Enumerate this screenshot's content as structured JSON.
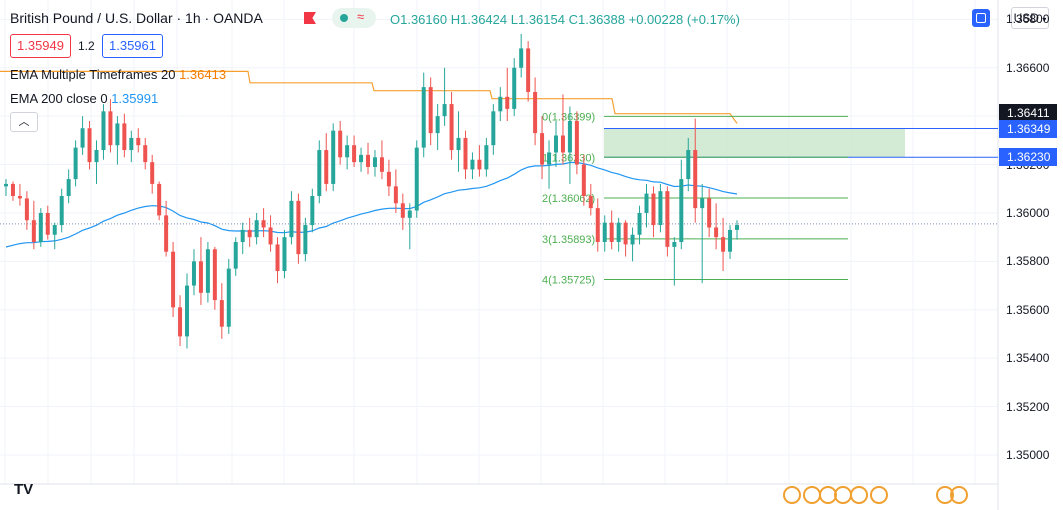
{
  "header": {
    "title": "British Pound / U.S. Dollar · 1h · OANDA",
    "open": "O1.36160",
    "high": "H1.36424",
    "low": "L1.36154",
    "close": "C1.36388",
    "change": "+0.00228 (+0.17%)",
    "sell_price": "1.35949",
    "spread": "1.2",
    "buy_price": "1.35961"
  },
  "indicators": {
    "ema20_label": "EMA Multiple Timeframes 20",
    "ema20_value": "1.36413",
    "ema200_label": "EMA 200 close 0",
    "ema200_value": "1.35991"
  },
  "toolbar": {
    "currency": "USD",
    "logo": "TV"
  },
  "axis": {
    "labels": [
      "1.36800",
      "1.36600",
      "1.36400",
      "1.36200",
      "1.36000",
      "1.35800",
      "1.35600",
      "1.35400",
      "1.35200",
      "1.35000"
    ],
    "tags": [
      {
        "text": "1.36411",
        "color": "#131722"
      },
      {
        "text": "1.36349",
        "color": "#2962ff"
      },
      {
        "text": "1.36230",
        "color": "#2962ff"
      }
    ]
  },
  "fib": {
    "levels": [
      {
        "label": "0(1.36399)",
        "price": 1.36399
      },
      {
        "label": "1(1.36230)",
        "price": 1.3623
      },
      {
        "label": "2(1.36062)",
        "price": 1.36062
      },
      {
        "label": "3(1.35893)",
        "price": 1.35893
      },
      {
        "label": "4(1.35725)",
        "price": 1.35725
      }
    ]
  },
  "colors": {
    "up": "#26a69a",
    "down": "#ef5350",
    "ema20": "#f5a030",
    "ema200": "#2196f3",
    "fib": "#4caf50",
    "zone": "#c8e6c9"
  },
  "chart_data": {
    "type": "candlestick",
    "ylim": [
      1.3488,
      1.3688
    ],
    "zone": [
      1.3623,
      1.36349
    ],
    "hlines": [
      1.36349,
      1.3623
    ],
    "current_price": 1.35955,
    "candles": [
      [
        1.3611,
        1.3614,
        1.3607,
        1.3612
      ],
      [
        1.3612,
        1.3613,
        1.3605,
        1.3607
      ],
      [
        1.3607,
        1.3612,
        1.3603,
        1.3606
      ],
      [
        1.3606,
        1.3609,
        1.3593,
        1.3597
      ],
      [
        1.3597,
        1.3605,
        1.3585,
        1.3588
      ],
      [
        1.3588,
        1.3602,
        1.3586,
        1.36
      ],
      [
        1.36,
        1.3603,
        1.3589,
        1.3591
      ],
      [
        1.3591,
        1.3596,
        1.3585,
        1.3595
      ],
      [
        1.3595,
        1.361,
        1.3592,
        1.3607
      ],
      [
        1.3607,
        1.3618,
        1.3604,
        1.3614
      ],
      [
        1.3614,
        1.363,
        1.3611,
        1.3627
      ],
      [
        1.3627,
        1.364,
        1.3624,
        1.3635
      ],
      [
        1.3635,
        1.3638,
        1.3618,
        1.3621
      ],
      [
        1.3621,
        1.363,
        1.3612,
        1.3626
      ],
      [
        1.3626,
        1.3645,
        1.3622,
        1.3642
      ],
      [
        1.3642,
        1.3647,
        1.3625,
        1.3628
      ],
      [
        1.3628,
        1.364,
        1.362,
        1.3637
      ],
      [
        1.3637,
        1.3641,
        1.3623,
        1.3626
      ],
      [
        1.3626,
        1.3634,
        1.3621,
        1.3631
      ],
      [
        1.3631,
        1.3635,
        1.3625,
        1.3628
      ],
      [
        1.3628,
        1.3631,
        1.3618,
        1.3621
      ],
      [
        1.3621,
        1.3624,
        1.3608,
        1.3612
      ],
      [
        1.3612,
        1.3613,
        1.3597,
        1.3599
      ],
      [
        1.3599,
        1.3605,
        1.3582,
        1.3584
      ],
      [
        1.3584,
        1.3588,
        1.3557,
        1.3561
      ],
      [
        1.3561,
        1.3566,
        1.3545,
        1.3549
      ],
      [
        1.3549,
        1.3575,
        1.3544,
        1.357
      ],
      [
        1.357,
        1.3585,
        1.3566,
        1.358
      ],
      [
        1.358,
        1.359,
        1.3562,
        1.3567
      ],
      [
        1.3567,
        1.3588,
        1.3563,
        1.3585
      ],
      [
        1.3585,
        1.3586,
        1.356,
        1.3564
      ],
      [
        1.3564,
        1.3571,
        1.3548,
        1.3553
      ],
      [
        1.3553,
        1.3581,
        1.355,
        1.3577
      ],
      [
        1.3577,
        1.359,
        1.3574,
        1.3588
      ],
      [
        1.3588,
        1.3596,
        1.3583,
        1.3593
      ],
      [
        1.3593,
        1.3598,
        1.3586,
        1.359
      ],
      [
        1.359,
        1.36,
        1.3587,
        1.3597
      ],
      [
        1.3597,
        1.3602,
        1.359,
        1.3594
      ],
      [
        1.3594,
        1.3599,
        1.3584,
        1.3587
      ],
      [
        1.3587,
        1.359,
        1.3571,
        1.3576
      ],
      [
        1.3576,
        1.3593,
        1.3573,
        1.359
      ],
      [
        1.359,
        1.3609,
        1.3587,
        1.3605
      ],
      [
        1.3605,
        1.3608,
        1.3579,
        1.3583
      ],
      [
        1.3583,
        1.3598,
        1.358,
        1.3595
      ],
      [
        1.3595,
        1.361,
        1.3592,
        1.3607
      ],
      [
        1.3607,
        1.363,
        1.3604,
        1.3626
      ],
      [
        1.3626,
        1.3633,
        1.3609,
        1.3612
      ],
      [
        1.3612,
        1.3637,
        1.3609,
        1.3634
      ],
      [
        1.3634,
        1.3638,
        1.362,
        1.3623
      ],
      [
        1.3623,
        1.3632,
        1.3618,
        1.3628
      ],
      [
        1.3628,
        1.3632,
        1.3619,
        1.3621
      ],
      [
        1.3621,
        1.3627,
        1.3617,
        1.3624
      ],
      [
        1.3624,
        1.3629,
        1.3616,
        1.3619
      ],
      [
        1.3619,
        1.3626,
        1.3615,
        1.3623
      ],
      [
        1.3623,
        1.363,
        1.3614,
        1.3617
      ],
      [
        1.3617,
        1.3622,
        1.3607,
        1.3611
      ],
      [
        1.3611,
        1.3618,
        1.36,
        1.3604
      ],
      [
        1.3604,
        1.3608,
        1.3593,
        1.3598
      ],
      [
        1.3598,
        1.3604,
        1.3585,
        1.3601
      ],
      [
        1.3601,
        1.363,
        1.3598,
        1.3627
      ],
      [
        1.3627,
        1.3658,
        1.3623,
        1.3652
      ],
      [
        1.3652,
        1.3656,
        1.3628,
        1.3633
      ],
      [
        1.3633,
        1.3645,
        1.3626,
        1.364
      ],
      [
        1.364,
        1.366,
        1.3636,
        1.3645
      ],
      [
        1.3645,
        1.365,
        1.3622,
        1.3626
      ],
      [
        1.3626,
        1.3642,
        1.3617,
        1.3631
      ],
      [
        1.3631,
        1.3634,
        1.3614,
        1.3618
      ],
      [
        1.3618,
        1.3625,
        1.3614,
        1.3622
      ],
      [
        1.3622,
        1.3628,
        1.3615,
        1.3618
      ],
      [
        1.3618,
        1.3631,
        1.3615,
        1.3628
      ],
      [
        1.3628,
        1.3645,
        1.3624,
        1.3642
      ],
      [
        1.3642,
        1.3652,
        1.3638,
        1.3648
      ],
      [
        1.3648,
        1.366,
        1.3638,
        1.3643
      ],
      [
        1.3643,
        1.3664,
        1.364,
        1.366
      ],
      [
        1.366,
        1.3674,
        1.3656,
        1.3668
      ],
      [
        1.3668,
        1.3671,
        1.3646,
        1.365
      ],
      [
        1.365,
        1.3656,
        1.3628,
        1.3633
      ],
      [
        1.3633,
        1.364,
        1.3614,
        1.362
      ],
      [
        1.362,
        1.363,
        1.361,
        1.3625
      ],
      [
        1.3625,
        1.3638,
        1.3619,
        1.3632
      ],
      [
        1.3632,
        1.3649,
        1.362,
        1.3625
      ],
      [
        1.3625,
        1.3644,
        1.3612,
        1.3638
      ],
      [
        1.3638,
        1.3642,
        1.3616,
        1.362
      ],
      [
        1.362,
        1.3624,
        1.3603,
        1.3607
      ],
      [
        1.3607,
        1.3612,
        1.3599,
        1.3602
      ],
      [
        1.3602,
        1.3606,
        1.3584,
        1.3588
      ],
      [
        1.3588,
        1.3599,
        1.3584,
        1.3596
      ],
      [
        1.3596,
        1.3601,
        1.3585,
        1.3588
      ],
      [
        1.3588,
        1.3598,
        1.3584,
        1.3596
      ],
      [
        1.3596,
        1.3597,
        1.3582,
        1.3587
      ],
      [
        1.3587,
        1.3594,
        1.358,
        1.3591
      ],
      [
        1.3591,
        1.3603,
        1.3587,
        1.36
      ],
      [
        1.36,
        1.3612,
        1.3594,
        1.3608
      ],
      [
        1.3608,
        1.3611,
        1.359,
        1.3595
      ],
      [
        1.3595,
        1.3612,
        1.3592,
        1.3609
      ],
      [
        1.3609,
        1.3611,
        1.3582,
        1.3586
      ],
      [
        1.3586,
        1.359,
        1.357,
        1.3588
      ],
      [
        1.3588,
        1.3622,
        1.3585,
        1.3614
      ],
      [
        1.3614,
        1.3631,
        1.3609,
        1.3626
      ],
      [
        1.3626,
        1.3639,
        1.3596,
        1.3602
      ],
      [
        1.3602,
        1.3612,
        1.3571,
        1.3606
      ],
      [
        1.3606,
        1.361,
        1.359,
        1.3594
      ],
      [
        1.3594,
        1.3604,
        1.3585,
        1.359
      ],
      [
        1.359,
        1.3598,
        1.3576,
        1.3584
      ],
      [
        1.3584,
        1.3595,
        1.3581,
        1.3593
      ],
      [
        1.3593,
        1.3597,
        1.3589,
        1.3595
      ]
    ]
  }
}
